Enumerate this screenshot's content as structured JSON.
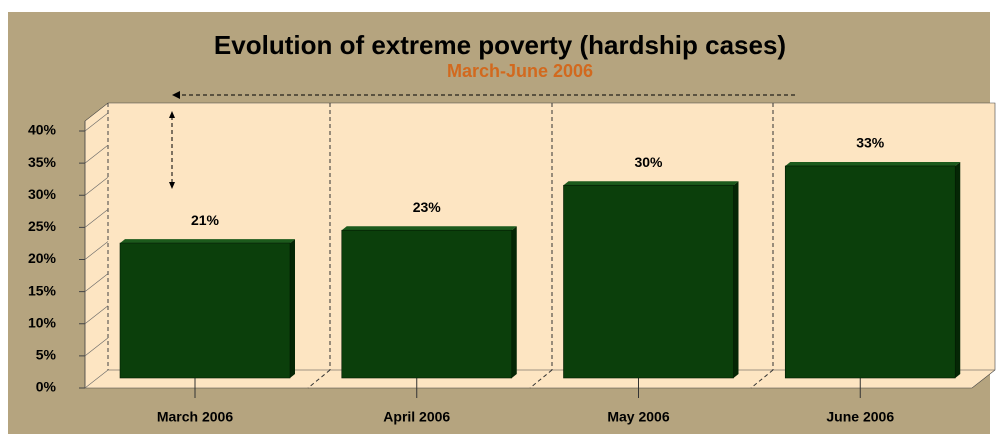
{
  "chart_data": {
    "type": "bar",
    "title": "Evolution of extreme poverty (hardship cases)",
    "subtitle": "March-June 2006",
    "categories": [
      "March 2006",
      "April 2006",
      "May 2006",
      "June 2006"
    ],
    "values": [
      21,
      23,
      30,
      33
    ],
    "value_labels": [
      "21%",
      "23%",
      "30%",
      "33%"
    ],
    "color": "#0b3f0b",
    "ylim": [
      0,
      40
    ],
    "yticks": [
      {
        "value": 0,
        "label": "0%"
      },
      {
        "value": 5,
        "label": "5%"
      },
      {
        "value": 10,
        "label": "10%"
      },
      {
        "value": 15,
        "label": "15%"
      },
      {
        "value": 20,
        "label": "20%"
      },
      {
        "value": 25,
        "label": "25%"
      },
      {
        "value": 30,
        "label": "30%"
      },
      {
        "value": 35,
        "label": "35%"
      },
      {
        "value": 40,
        "label": "40%"
      }
    ]
  }
}
